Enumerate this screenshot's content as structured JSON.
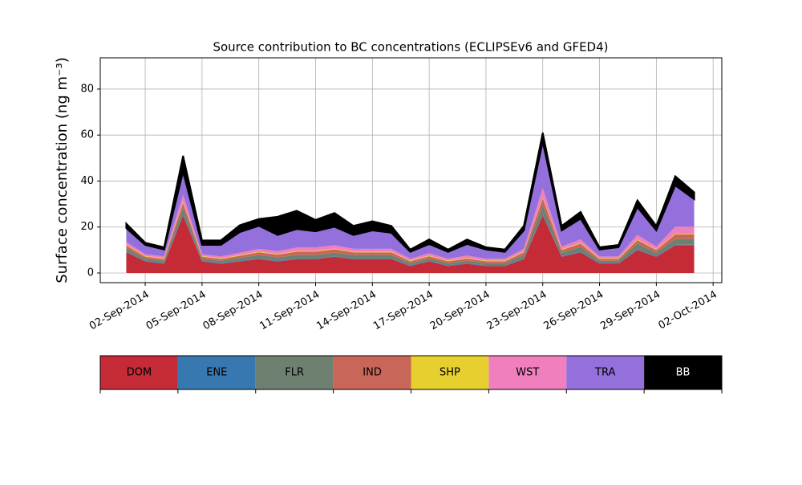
{
  "chart_data": {
    "type": "stacked_area",
    "title": "Source contribution to BC concentrations (ECLIPSEv6 and GFED4)",
    "ylabel": "Surface concentration (ng m⁻³)",
    "x": [
      "2014-09-01",
      "2014-09-02",
      "2014-09-03",
      "2014-09-04",
      "2014-09-05",
      "2014-09-06",
      "2014-09-07",
      "2014-09-08",
      "2014-09-09",
      "2014-09-10",
      "2014-09-11",
      "2014-09-12",
      "2014-09-13",
      "2014-09-14",
      "2014-09-15",
      "2014-09-16",
      "2014-09-17",
      "2014-09-18",
      "2014-09-19",
      "2014-09-20",
      "2014-09-21",
      "2014-09-22",
      "2014-09-23",
      "2014-09-24",
      "2014-09-25",
      "2014-09-26",
      "2014-09-27",
      "2014-09-28",
      "2014-09-29",
      "2014-09-30",
      "2014-10-01"
    ],
    "series": [
      {
        "name": "DOM",
        "color": "#c52a37",
        "values": [
          9,
          5,
          4,
          25,
          5,
          4,
          5,
          6,
          5,
          6,
          6,
          7,
          6,
          6,
          6,
          3,
          5,
          3,
          4,
          3,
          3,
          6,
          25,
          7,
          9,
          4,
          4,
          10,
          7,
          12,
          12
        ]
      },
      {
        "name": "ENE",
        "color": "#3878b0",
        "values": [
          0.3,
          0.3,
          0.3,
          0.5,
          0.3,
          0.3,
          0.3,
          0.3,
          0.3,
          0.3,
          0.3,
          0.3,
          0.3,
          0.3,
          0.3,
          0.3,
          0.3,
          0.3,
          0.3,
          0.3,
          0.3,
          0.3,
          0.5,
          0.3,
          0.3,
          0.3,
          0.3,
          0.3,
          0.3,
          0.3,
          0.3
        ]
      },
      {
        "name": "FLR",
        "color": "#6e8070",
        "values": [
          1.5,
          1,
          1,
          3,
          1,
          1,
          1.2,
          1.5,
          1.5,
          1.5,
          1.5,
          1.5,
          1.5,
          1.5,
          1.5,
          1,
          1,
          1,
          1,
          1,
          1,
          1.5,
          4,
          1.5,
          2,
          1,
          1,
          2.5,
          1.5,
          2.5,
          2.5
        ]
      },
      {
        "name": "IND",
        "color": "#c9665a",
        "values": [
          1.2,
          0.8,
          0.8,
          2,
          0.8,
          0.8,
          1,
          1.2,
          1.2,
          1.5,
          1.5,
          1.5,
          1.2,
          1.2,
          1.2,
          0.8,
          1,
          0.8,
          1,
          0.8,
          0.8,
          1.2,
          3,
          1.2,
          1.5,
          0.8,
          0.8,
          1.5,
          1.2,
          2,
          2
        ]
      },
      {
        "name": "SHP",
        "color": "#e6cf2f",
        "values": [
          0.3,
          0.3,
          0.3,
          0.5,
          0.3,
          0.3,
          0.3,
          0.3,
          0.3,
          0.3,
          0.3,
          0.3,
          0.3,
          0.3,
          0.3,
          0.3,
          0.3,
          0.3,
          0.3,
          0.3,
          0.3,
          0.3,
          0.5,
          0.3,
          0.3,
          0.3,
          0.3,
          0.3,
          0.3,
          0.3,
          0.3
        ]
      },
      {
        "name": "WST",
        "color": "#f07fbd",
        "values": [
          1.2,
          0.8,
          0.8,
          3,
          0.8,
          0.8,
          1,
          1.2,
          1.2,
          1.5,
          1.5,
          1.5,
          1.2,
          1.2,
          1.2,
          0.8,
          1,
          0.8,
          1,
          0.8,
          0.8,
          1.2,
          4,
          1.2,
          1.5,
          0.8,
          0.8,
          2,
          1.2,
          3,
          3
        ]
      },
      {
        "name": "TRA",
        "color": "#9370db",
        "values": [
          6,
          4,
          3,
          10,
          4,
          5,
          9,
          10,
          7,
          8,
          7,
          8,
          6,
          8,
          7,
          3,
          4,
          3,
          5,
          4,
          3,
          8,
          20,
          7,
          9,
          3,
          4,
          12,
          7,
          18,
          12
        ]
      },
      {
        "name": "BB",
        "color": "#000000",
        "values": [
          2,
          1,
          1,
          7,
          2,
          2,
          3,
          3,
          8,
          8,
          5,
          6,
          4,
          4,
          3,
          1,
          2,
          1,
          2,
          1,
          1,
          2,
          4,
          2,
          3,
          1,
          1,
          3,
          2,
          4,
          3
        ]
      }
    ],
    "xlim": [
      "2014-08-30T15:00",
      "2014-10-02T11:00"
    ],
    "xticks": [
      {
        "value": "2014-09-02",
        "label": "02-Sep-2014"
      },
      {
        "value": "2014-09-05",
        "label": "05-Sep-2014"
      },
      {
        "value": "2014-09-08",
        "label": "08-Sep-2014"
      },
      {
        "value": "2014-09-11",
        "label": "11-Sep-2014"
      },
      {
        "value": "2014-09-14",
        "label": "14-Sep-2014"
      },
      {
        "value": "2014-09-17",
        "label": "17-Sep-2014"
      },
      {
        "value": "2014-09-20",
        "label": "20-Sep-2014"
      },
      {
        "value": "2014-09-23",
        "label": "23-Sep-2014"
      },
      {
        "value": "2014-09-26",
        "label": "26-Sep-2014"
      },
      {
        "value": "2014-09-29",
        "label": "29-Sep-2014"
      },
      {
        "value": "2014-10-02",
        "label": "02-Oct-2014"
      }
    ],
    "ylim": [
      -4.2,
      93.6
    ],
    "yticks": [
      0,
      20,
      40,
      60,
      80
    ],
    "grid": true,
    "legend": "bottom"
  }
}
